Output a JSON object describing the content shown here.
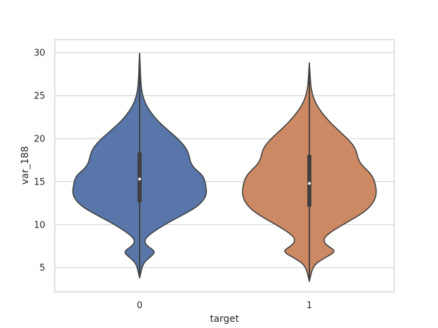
{
  "chart_data": {
    "type": "violin",
    "title": "",
    "xlabel": "target",
    "ylabel": "var_188",
    "categories": [
      "0",
      "1"
    ],
    "ylim": [
      2.2,
      31.5
    ],
    "yticks": [
      5,
      10,
      15,
      20,
      25,
      30
    ],
    "ytick_labels": [
      "5",
      "10",
      "15",
      "20",
      "25",
      "30"
    ],
    "grid": "horizontal",
    "series": [
      {
        "category": "0",
        "color": "#5876aa",
        "min": 3.8,
        "q1": 12.6,
        "median": 15.3,
        "q3": 18.4,
        "max": 29.9,
        "density_profile": [
          [
            3.8,
            0.0
          ],
          [
            5.2,
            0.04
          ],
          [
            5.8,
            0.09
          ],
          [
            6.3,
            0.17
          ],
          [
            6.8,
            0.23
          ],
          [
            7.2,
            0.18
          ],
          [
            7.6,
            0.1
          ],
          [
            8.2,
            0.07
          ],
          [
            8.8,
            0.14
          ],
          [
            9.5,
            0.27
          ],
          [
            10.3,
            0.44
          ],
          [
            11.2,
            0.66
          ],
          [
            12.0,
            0.84
          ],
          [
            12.8,
            0.95
          ],
          [
            13.6,
            1.0
          ],
          [
            14.4,
            0.99
          ],
          [
            15.2,
            0.97
          ],
          [
            15.8,
            0.93
          ],
          [
            16.5,
            0.82
          ],
          [
            17.2,
            0.76
          ],
          [
            18.0,
            0.74
          ],
          [
            18.8,
            0.7
          ],
          [
            19.6,
            0.62
          ],
          [
            20.4,
            0.51
          ],
          [
            21.2,
            0.39
          ],
          [
            22.0,
            0.28
          ],
          [
            22.8,
            0.19
          ],
          [
            23.6,
            0.12
          ],
          [
            24.4,
            0.07
          ],
          [
            25.2,
            0.04
          ],
          [
            26.0,
            0.025
          ],
          [
            27.0,
            0.015
          ],
          [
            28.0,
            0.01
          ],
          [
            29.0,
            0.006
          ],
          [
            29.9,
            0.0
          ]
        ]
      },
      {
        "category": "1",
        "color": "#cc8963",
        "min": 3.4,
        "q1": 12.1,
        "median": 14.8,
        "q3": 18.1,
        "max": 28.8,
        "density_profile": [
          [
            3.4,
            0.0
          ],
          [
            4.8,
            0.04
          ],
          [
            5.5,
            0.1
          ],
          [
            6.1,
            0.22
          ],
          [
            6.6,
            0.34
          ],
          [
            7.0,
            0.38
          ],
          [
            7.4,
            0.3
          ],
          [
            7.9,
            0.22
          ],
          [
            8.5,
            0.22
          ],
          [
            9.2,
            0.33
          ],
          [
            10.0,
            0.5
          ],
          [
            10.8,
            0.68
          ],
          [
            11.6,
            0.84
          ],
          [
            12.4,
            0.94
          ],
          [
            13.2,
            0.99
          ],
          [
            14.0,
            1.0
          ],
          [
            14.8,
            0.98
          ],
          [
            15.5,
            0.95
          ],
          [
            16.2,
            0.88
          ],
          [
            17.0,
            0.77
          ],
          [
            17.8,
            0.72
          ],
          [
            18.6,
            0.7
          ],
          [
            19.4,
            0.64
          ],
          [
            20.2,
            0.54
          ],
          [
            21.0,
            0.43
          ],
          [
            21.8,
            0.32
          ],
          [
            22.6,
            0.23
          ],
          [
            23.4,
            0.15
          ],
          [
            24.2,
            0.09
          ],
          [
            25.0,
            0.05
          ],
          [
            26.0,
            0.025
          ],
          [
            27.0,
            0.013
          ],
          [
            28.0,
            0.007
          ],
          [
            28.8,
            0.0
          ]
        ]
      }
    ]
  }
}
